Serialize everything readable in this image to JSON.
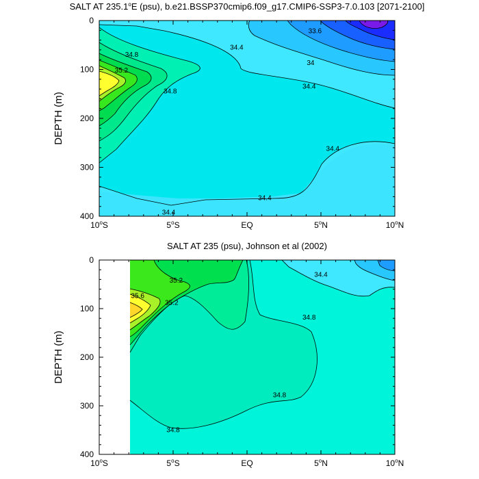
{
  "chart_data": [
    {
      "type": "contour",
      "title": "SALT AT 235.1°E (psu), b.e21.BSSP370cmip6.f09_g17.CMIP6-SSP3-7.0.103 [2071-2100]",
      "title_main": "SALT AT 235.1",
      "title_sup": "o",
      "title_rest": "E (psu), b.e21.BSSP370cmip6.f09_g17.CMIP6-SSP3-7.0.103 [2071-2100]",
      "ylabel": "DEPTH (m)",
      "xlabel": "",
      "xlim": [
        -10,
        10
      ],
      "ylim": [
        0,
        400
      ],
      "y_inverted": true,
      "x_ticks": [
        {
          "value": -10,
          "num": "10",
          "sup": "o",
          "hemi": "S"
        },
        {
          "value": -5,
          "num": "5",
          "sup": "o",
          "hemi": "S"
        },
        {
          "value": 0,
          "num": "EQ",
          "sup": "",
          "hemi": ""
        },
        {
          "value": 5,
          "num": "5",
          "sup": "o",
          "hemi": "N"
        },
        {
          "value": 10,
          "num": "10",
          "sup": "o",
          "hemi": "N"
        }
      ],
      "y_ticks": [
        "0",
        "100",
        "200",
        "300",
        "400"
      ],
      "contour_labels": [
        {
          "text": "33.6",
          "x": 4.6,
          "y": 22
        },
        {
          "text": "34.4",
          "x": -0.7,
          "y": 55
        },
        {
          "text": "34.8",
          "x": -7.8,
          "y": 70
        },
        {
          "text": "35.2",
          "x": -8.5,
          "y": 102
        },
        {
          "text": "34",
          "x": 4.3,
          "y": 87
        },
        {
          "text": "34.4",
          "x": 4.2,
          "y": 135
        },
        {
          "text": "34.8",
          "x": -5.2,
          "y": 145
        },
        {
          "text": "34.4",
          "x": 5.8,
          "y": 262
        },
        {
          "text": "34.4",
          "x": 1.2,
          "y": 363
        },
        {
          "text": "34.4",
          "x": -5.3,
          "y": 392
        }
      ]
    },
    {
      "type": "contour",
      "title": "SALT AT 235 (psu), Johnson et al (2002)",
      "ylabel": "DEPTH (m)",
      "xlabel": "",
      "xlim": [
        -10,
        10
      ],
      "ylim": [
        0,
        400
      ],
      "y_inverted": true,
      "data_x_start": -8,
      "x_ticks": [
        {
          "value": -10,
          "num": "10",
          "sup": "o",
          "hemi": "S"
        },
        {
          "value": -5,
          "num": "5",
          "sup": "o",
          "hemi": "S"
        },
        {
          "value": 0,
          "num": "EQ",
          "sup": "",
          "hemi": ""
        },
        {
          "value": 5,
          "num": "5",
          "sup": "o",
          "hemi": "N"
        },
        {
          "value": 10,
          "num": "10",
          "sup": "o",
          "hemi": "N"
        }
      ],
      "y_ticks": [
        "0",
        "100",
        "200",
        "300",
        "400"
      ],
      "contour_labels": [
        {
          "text": "35.2",
          "x": -4.8,
          "y": 42
        },
        {
          "text": "34.4",
          "x": 5.0,
          "y": 30
        },
        {
          "text": "35.6",
          "x": -7.4,
          "y": 74
        },
        {
          "text": "35.2",
          "x": -5.1,
          "y": 88
        },
        {
          "text": "34.8",
          "x": 4.2,
          "y": 118
        },
        {
          "text": "34.8",
          "x": 2.2,
          "y": 278
        },
        {
          "text": "34.8",
          "x": -5.0,
          "y": 350
        }
      ]
    }
  ]
}
